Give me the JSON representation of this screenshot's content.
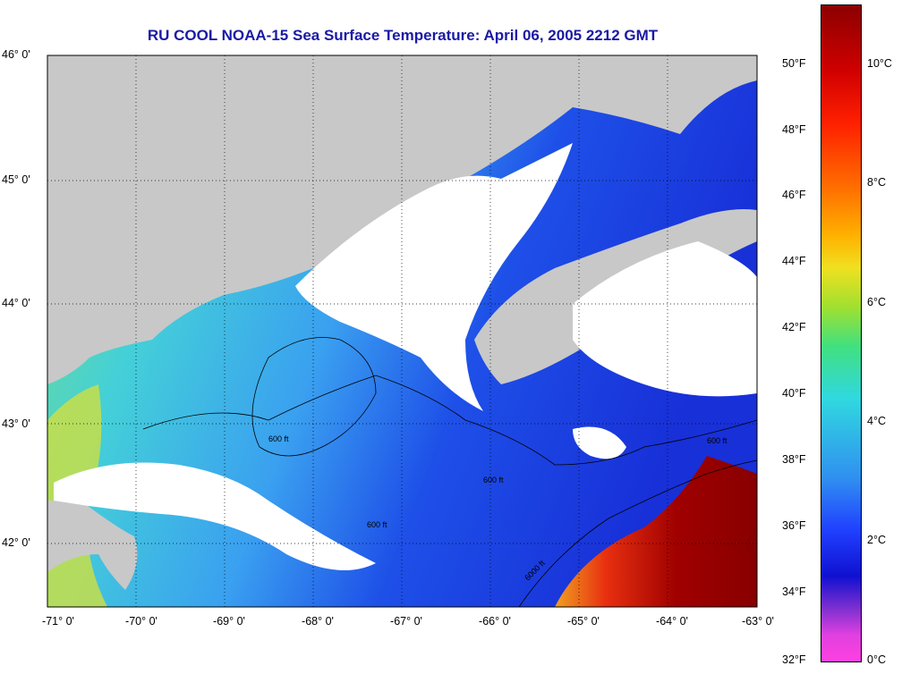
{
  "title": "RU COOL  NOAA-15  Sea Surface Temperature:  April 06, 2005 2212 GMT",
  "lat_labels": [
    "46° 0'",
    "45° 0'",
    "44° 0'",
    "43° 0'",
    "42° 0'"
  ],
  "lon_labels": [
    "-71° 0'",
    "-70° 0'",
    "-69° 0'",
    "-68° 0'",
    "-67° 0'",
    "-66° 0'",
    "-65° 0'",
    "-64° 0'",
    "-63° 0'"
  ],
  "colorbar": {
    "fahrenheit": [
      "50°F",
      "48°F",
      "46°F",
      "44°F",
      "42°F",
      "40°F",
      "38°F",
      "36°F",
      "34°F",
      "32°F"
    ],
    "celsius": [
      "10°C",
      "8°C",
      "6°C",
      "4°C",
      "2°C",
      "0°C"
    ]
  },
  "contour_labels": [
    "600 ft",
    "6000 ft"
  ],
  "colors": {
    "land": "#c8c8c8",
    "cloud": "#ffffff",
    "title": "#1a1aa6",
    "cold": "#1a3fe0",
    "mid": "#30c8e0",
    "warm": "#f07010",
    "hot": "#8c0000"
  }
}
